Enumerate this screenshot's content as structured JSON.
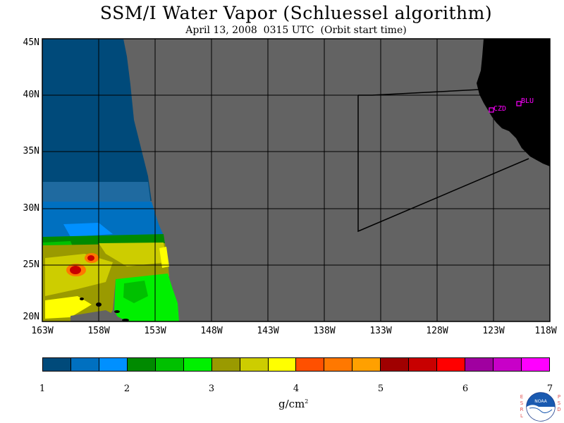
{
  "title": "SSM/I Water Vapor (Schluessel algorithm)",
  "subtitle": "April 13, 2008  0315 UTC  (Orbit start time)",
  "lat_labels": [
    "45N",
    "40N",
    "35N",
    "30N",
    "25N",
    "20N"
  ],
  "lon_labels": [
    "163W",
    "158W",
    "153W",
    "148W",
    "143W",
    "138W",
    "133W",
    "128W",
    "123W",
    "118W"
  ],
  "stations": [
    {
      "id": "CZD"
    },
    {
      "id": "BLU"
    }
  ],
  "colorbar": {
    "colors": [
      "#004a7a",
      "#0070c0",
      "#0090ff",
      "#008a00",
      "#00c000",
      "#00f000",
      "#9a9a00",
      "#cdcd00",
      "#ffff00",
      "#ff5000",
      "#ff7800",
      "#ffa000",
      "#a00000",
      "#c80000",
      "#ff0000",
      "#a000a0",
      "#c800c8",
      "#ff00ff"
    ],
    "tick_labels": [
      "1",
      "2",
      "3",
      "4",
      "5",
      "6",
      "7"
    ],
    "units": "g/cm",
    "units_sup": "2"
  },
  "colors": {
    "no_data": "#636363",
    "land": "#000000",
    "station": "#ff00ff"
  },
  "logo": {
    "text": "NOAA",
    "left_letters": "ESRL",
    "right_letters": "PSD"
  }
}
